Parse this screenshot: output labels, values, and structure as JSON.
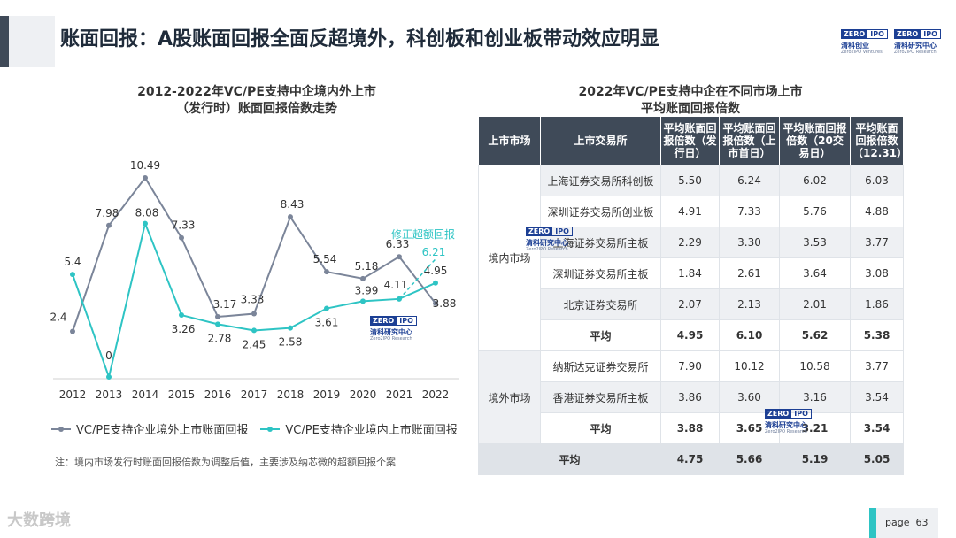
{
  "header": {
    "title": "账面回报：A股账面回报全面反超境外，科创板和创业板带动效应明显"
  },
  "logos": [
    {
      "zero": "ZERO",
      "ipo": "IPO",
      "cn": "清科创业",
      "en": "Zero2IPO Ventures"
    },
    {
      "zero": "ZERO",
      "ipo": "IPO",
      "cn": "清科研究中心",
      "en": "Zero2IPO Research"
    }
  ],
  "chart_title_line1": "2012-2022年VC/PE支持中企境内外上市",
  "chart_title_line2": "（发行时）账面回报倍数走势",
  "chart_data": {
    "type": "line",
    "x": [
      "2012",
      "2013",
      "2014",
      "2015",
      "2016",
      "2017",
      "2018",
      "2019",
      "2020",
      "2021",
      "2022"
    ],
    "series": [
      {
        "name": "VC/PE支持企业境外上市账面回报",
        "color": "#7b8599",
        "values": [
          2.4,
          7.98,
          10.49,
          7.33,
          3.17,
          3.33,
          8.43,
          5.54,
          5.18,
          6.33,
          3.88
        ],
        "labels": [
          "2.4",
          "7.98",
          "10.49",
          "7.33",
          "3.17",
          "3.33",
          "8.43",
          "5.54",
          "5.18",
          "6.33",
          "3.88"
        ]
      },
      {
        "name": "VC/PE支持企业境内上市账面回报",
        "color": "#2ec4c4",
        "values": [
          5.4,
          0,
          8.08,
          3.26,
          2.78,
          2.45,
          2.58,
          3.61,
          3.99,
          4.11,
          4.95
        ],
        "labels": [
          "5.4",
          "0",
          "8.08",
          "3.26",
          "2.78",
          "2.45",
          "2.58",
          "3.61",
          "3.99",
          "4.11",
          "4.95"
        ]
      }
    ],
    "annotation": {
      "text": "修正超额回报",
      "value": 6.21,
      "label": "6.21",
      "x": "2022",
      "from_value": 4.11,
      "from_x": "2021",
      "color": "#2ec4c4"
    },
    "ylim": [
      0,
      11
    ],
    "grid": false
  },
  "legend": [
    {
      "label": "VC/PE支持企业境外上市账面回报",
      "color": "#7b8599"
    },
    {
      "label": "VC/PE支持企业境内上市账面回报",
      "color": "#2ec4c4"
    }
  ],
  "note": "注：境内市场发行时账面回报倍数为调整后值，主要涉及纳芯微的超额回报个案",
  "table_title_line1": "2022年VC/PE支持中企在不同市场上市",
  "table_title_line2": "平均账面回报倍数",
  "table": {
    "headers": [
      "上市市场",
      "上市交易所",
      "平均账面回报倍数（发行日）",
      "平均账面回报倍数（上市首日）",
      "平均账面回报倍数（20交易日）",
      "平均账面回报倍数（12.31）"
    ],
    "domestic": {
      "market": "境内市场",
      "rows": [
        {
          "exchange": "上海证券交易所科创板",
          "v": [
            "5.50",
            "6.24",
            "6.02",
            "6.03"
          ]
        },
        {
          "exchange": "深圳证券交易所创业板",
          "v": [
            "4.91",
            "7.33",
            "5.76",
            "4.88"
          ]
        },
        {
          "exchange": "上海证券交易所主板",
          "v": [
            "2.29",
            "3.30",
            "3.53",
            "3.77"
          ]
        },
        {
          "exchange": "深圳证券交易所主板",
          "v": [
            "1.84",
            "2.61",
            "3.64",
            "3.08"
          ]
        },
        {
          "exchange": "北京证券交易所",
          "v": [
            "2.07",
            "2.13",
            "2.01",
            "1.86"
          ]
        }
      ],
      "avg": {
        "label": "平均",
        "v": [
          "4.95",
          "6.10",
          "5.62",
          "5.38"
        ]
      }
    },
    "overseas": {
      "market": "境外市场",
      "rows": [
        {
          "exchange": "纳斯达克证券交易所",
          "v": [
            "7.90",
            "10.12",
            "10.58",
            "3.77"
          ]
        },
        {
          "exchange": "香港证券交易所主板",
          "v": [
            "3.86",
            "3.60",
            "3.16",
            "3.54"
          ]
        }
      ],
      "avg": {
        "label": "平均",
        "v": [
          "3.88",
          "3.65",
          "3.21",
          "3.54"
        ]
      }
    },
    "grand_avg": {
      "label": "平均",
      "v": [
        "4.75",
        "5.66",
        "5.19",
        "5.05"
      ]
    }
  },
  "watermark": {
    "zero": "ZERO",
    "ipo": "IPO",
    "cn": "清科研究中心",
    "en": "Zero2IPO Research"
  },
  "footer": {
    "brand": "大数跨境",
    "page_label": "page",
    "page_number": "63"
  }
}
